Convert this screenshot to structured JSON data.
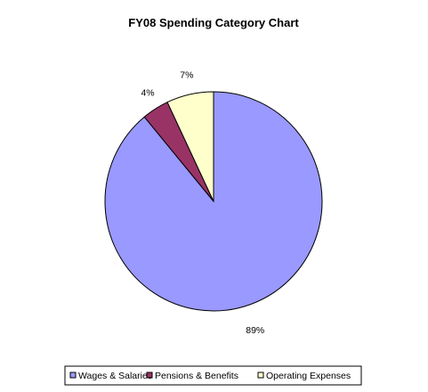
{
  "chart_data": {
    "type": "pie",
    "title": "FY08 Spending Category Chart",
    "categories": [
      "Wages & Salaries",
      "Pensions & Benefits",
      "Operating Expenses"
    ],
    "values": [
      89,
      4,
      7
    ],
    "labels": [
      "89%",
      "4%",
      "7%"
    ],
    "colors": [
      "#9999FF",
      "#993366",
      "#FFFFCC"
    ],
    "legend_position": "bottom"
  }
}
